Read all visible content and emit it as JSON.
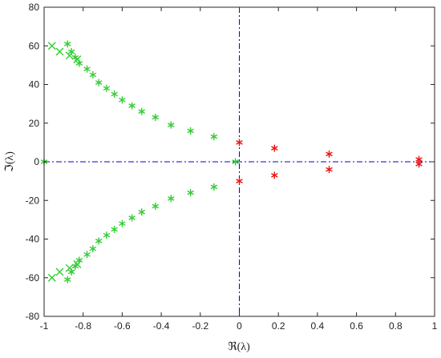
{
  "chart_data": {
    "type": "scatter",
    "title": "",
    "xlabel": "ℜ(λ)",
    "ylabel": "ℑ(λ)",
    "xlim": [
      -1,
      1
    ],
    "ylim": [
      -80,
      80
    ],
    "xticks": [
      -1,
      -0.8,
      -0.6,
      -0.4,
      -0.2,
      0,
      0.2,
      0.4,
      0.6,
      0.8,
      1
    ],
    "xtick_labels": [
      "-1",
      "-0.8",
      "-0.6",
      "-0.4",
      "-0.2",
      "0",
      "0.2",
      "0.4",
      "0.6",
      "0.8",
      "1"
    ],
    "yticks": [
      -80,
      -60,
      -40,
      -20,
      0,
      20,
      40,
      60,
      80
    ],
    "ytick_labels": [
      "-80",
      "-60",
      "-40",
      "-20",
      "0",
      "20",
      "40",
      "60",
      "80"
    ],
    "grid": false,
    "reference_lines": [
      {
        "orientation": "horizontal",
        "value": 0,
        "style": "dash-dot",
        "color": "#0000cd"
      },
      {
        "orientation": "vertical",
        "value": 0,
        "style": "dash-dot",
        "color": "#0000cd"
      }
    ],
    "series": [
      {
        "marker": "asterisk",
        "color": "#33cc33",
        "points": [
          [
            -0.88,
            61
          ],
          [
            -0.86,
            57
          ],
          [
            -0.84,
            54
          ],
          [
            -0.82,
            51
          ],
          [
            -0.78,
            48
          ],
          [
            -0.75,
            45
          ],
          [
            -0.72,
            41
          ],
          [
            -0.68,
            38
          ],
          [
            -0.64,
            35
          ],
          [
            -0.6,
            32
          ],
          [
            -0.55,
            29
          ],
          [
            -0.5,
            26
          ],
          [
            -0.43,
            23
          ],
          [
            -0.35,
            19
          ],
          [
            -0.25,
            16
          ],
          [
            -0.13,
            13
          ],
          [
            -1.0,
            0
          ],
          [
            -0.02,
            0
          ],
          [
            -0.88,
            -61
          ],
          [
            -0.86,
            -57
          ],
          [
            -0.84,
            -54
          ],
          [
            -0.82,
            -51
          ],
          [
            -0.78,
            -48
          ],
          [
            -0.75,
            -45
          ],
          [
            -0.72,
            -41
          ],
          [
            -0.68,
            -38
          ],
          [
            -0.64,
            -35
          ],
          [
            -0.6,
            -32
          ],
          [
            -0.55,
            -29
          ],
          [
            -0.5,
            -26
          ],
          [
            -0.43,
            -23
          ],
          [
            -0.35,
            -19
          ],
          [
            -0.25,
            -16
          ],
          [
            -0.13,
            -13
          ]
        ]
      },
      {
        "marker": "cross",
        "color": "#33cc33",
        "points": [
          [
            -0.96,
            60
          ],
          [
            -0.92,
            57
          ],
          [
            -0.87,
            55
          ],
          [
            -0.83,
            53
          ],
          [
            -0.96,
            -60
          ],
          [
            -0.92,
            -57
          ],
          [
            -0.87,
            -55
          ],
          [
            -0.83,
            -53
          ]
        ]
      },
      {
        "marker": "asterisk",
        "color": "#ee1111",
        "points": [
          [
            0.0,
            10
          ],
          [
            0.0,
            -10
          ],
          [
            0.18,
            7
          ],
          [
            0.18,
            -7
          ],
          [
            0.46,
            4
          ],
          [
            0.46,
            -4
          ],
          [
            0.92,
            1.2
          ],
          [
            0.92,
            -1.2
          ]
        ]
      }
    ]
  }
}
